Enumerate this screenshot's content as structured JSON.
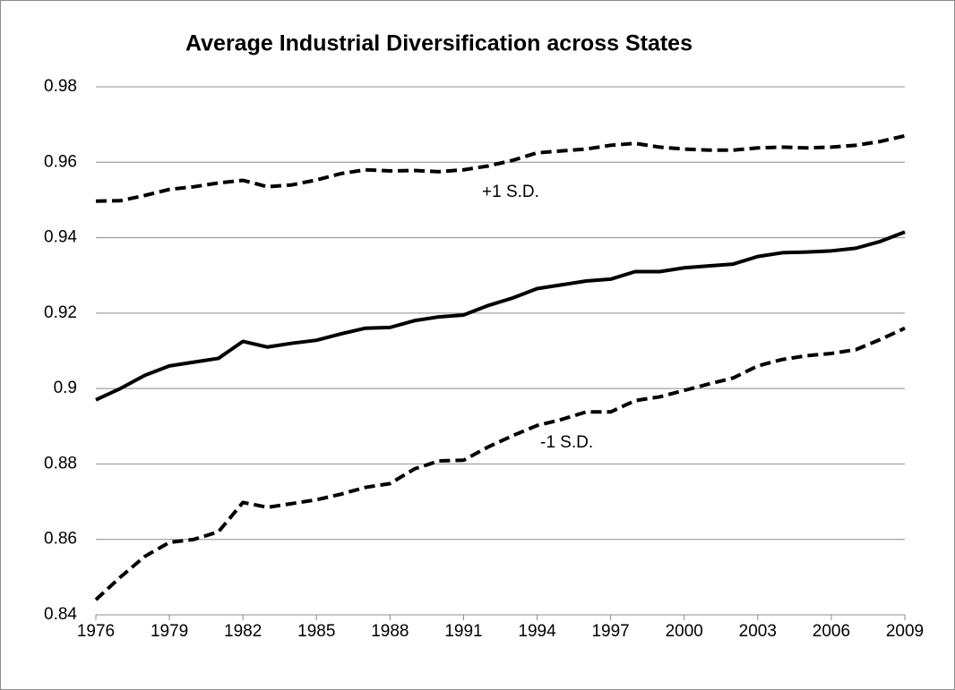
{
  "chart_data": {
    "type": "line",
    "title": "Average Industrial Diversification across States",
    "x": [
      1976,
      1977,
      1978,
      1979,
      1980,
      1981,
      1982,
      1983,
      1984,
      1985,
      1986,
      1987,
      1988,
      1989,
      1990,
      1991,
      1992,
      1993,
      1994,
      1995,
      1996,
      1997,
      1998,
      1999,
      2000,
      2001,
      2002,
      2003,
      2004,
      2005,
      2006,
      2007,
      2008,
      2009
    ],
    "series": [
      {
        "color": "#000000",
        "dashed": false,
        "values": [
          0.897,
          0.9,
          0.9035,
          0.906,
          0.907,
          0.908,
          0.9125,
          0.911,
          0.912,
          0.9128,
          0.9145,
          0.916,
          0.9162,
          0.918,
          0.919,
          0.9195,
          0.922,
          0.924,
          0.9265,
          0.9275,
          0.9285,
          0.929,
          0.931,
          0.931,
          0.932,
          0.9325,
          0.933,
          0.935,
          0.936,
          0.9362,
          0.9365,
          0.9372,
          0.939,
          0.9415
        ]
      },
      {
        "name": "+1 S.D.",
        "color": "#000000",
        "dashed": true,
        "values": [
          0.9497,
          0.9498,
          0.9512,
          0.9528,
          0.9535,
          0.9545,
          0.9552,
          0.9535,
          0.954,
          0.9553,
          0.957,
          0.958,
          0.9577,
          0.9578,
          0.9575,
          0.958,
          0.959,
          0.9605,
          0.9625,
          0.963,
          0.9635,
          0.9645,
          0.965,
          0.964,
          0.9635,
          0.9632,
          0.9632,
          0.9638,
          0.964,
          0.9638,
          0.964,
          0.9645,
          0.9655,
          0.967
        ]
      },
      {
        "name": "-1 S.D.",
        "color": "#000000",
        "dashed": true,
        "values": [
          0.844,
          0.85,
          0.8555,
          0.8592,
          0.86,
          0.862,
          0.8698,
          0.8685,
          0.8695,
          0.8705,
          0.872,
          0.8738,
          0.8748,
          0.8787,
          0.8808,
          0.881,
          0.8845,
          0.8875,
          0.8902,
          0.8918,
          0.8938,
          0.8938,
          0.8968,
          0.8978,
          0.8995,
          0.9012,
          0.9028,
          0.906,
          0.9077,
          0.9087,
          0.9093,
          0.9103,
          0.913,
          0.916
        ]
      }
    ],
    "xlim": [
      1976,
      2009
    ],
    "xticks": [
      1976,
      1979,
      1982,
      1985,
      1988,
      1991,
      1994,
      1997,
      2000,
      2003,
      2006,
      2009
    ],
    "ylim": [
      0.84,
      0.98
    ],
    "yticks": [
      0.84,
      0.86,
      0.88,
      0.9,
      0.92,
      0.94,
      0.96,
      0.98
    ],
    "grid": true
  }
}
